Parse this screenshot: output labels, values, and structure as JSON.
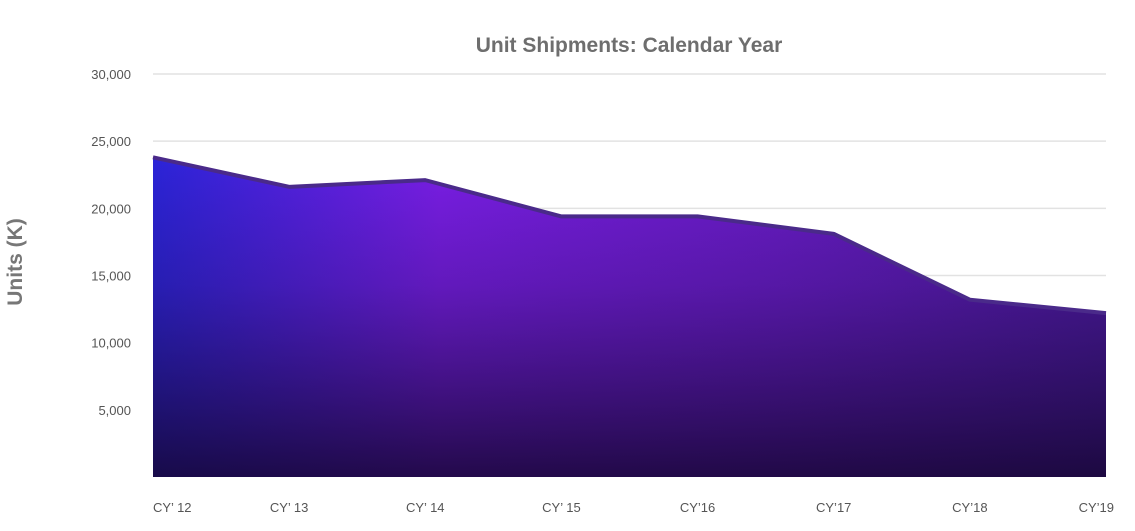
{
  "chart_data": {
    "type": "area",
    "title": "Unit Shipments: Calendar Year",
    "xlabel": "",
    "ylabel": "Units (K)",
    "categories": [
      "CY’ 12",
      "CY’ 13",
      "CY’ 14",
      "CY’ 15",
      "CY’16",
      "CY’17",
      "CY’18",
      "CY’19"
    ],
    "series": [
      {
        "values": [
          23800,
          21600,
          22100,
          19400,
          19400,
          18100,
          13200,
          12200
        ]
      }
    ],
    "ylim": [
      0,
      30000
    ],
    "yticks": [
      30000,
      25000,
      20000,
      15000,
      10000,
      5000
    ],
    "ytick_labels": [
      "30,000",
      "25,000",
      "20,000",
      "15,000",
      "10,000",
      "5,000"
    ],
    "grid": true,
    "legend": "none",
    "colors": {
      "fill_top_left": "#2a1fd6",
      "fill_mid": "#7a1de0",
      "fill_bottom": "#1f0b4e",
      "line": "#4a2a8a",
      "grid": "#e2e2e2",
      "text": "#6e6e6e"
    }
  }
}
